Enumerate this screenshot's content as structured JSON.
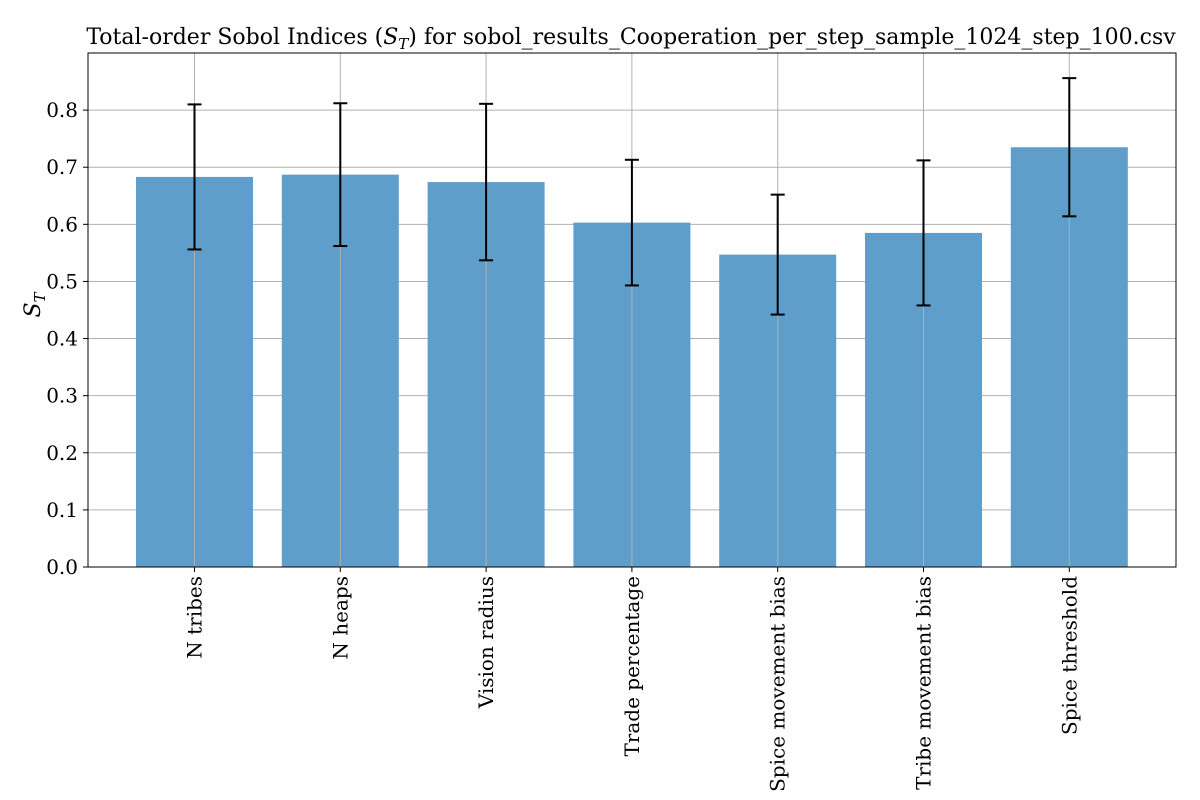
{
  "chart_data": {
    "type": "bar",
    "title": "Total-order Sobol Indices (",
    "title_math": "S",
    "title_sub": "T",
    "title_suffix": ") for sobol_results_Cooperation_per_step_sample_1024_step_100.csv",
    "ylabel_main": "S",
    "ylabel_sub": "T",
    "xlabel": "",
    "ylim": [
      0.0,
      0.9
    ],
    "yticks": [
      "0.0",
      "0.1",
      "0.2",
      "0.3",
      "0.4",
      "0.5",
      "0.6",
      "0.7",
      "0.8"
    ],
    "ytick_values": [
      0.0,
      0.1,
      0.2,
      0.3,
      0.4,
      0.5,
      0.6,
      0.7,
      0.8
    ],
    "grid": true,
    "categories": [
      "N tribes",
      "N heaps",
      "Vision radius",
      "Trade percentage",
      "Spice movement bias",
      "Tribe movement bias",
      "Spice threshold"
    ],
    "values": [
      0.683,
      0.687,
      0.674,
      0.603,
      0.547,
      0.585,
      0.735
    ],
    "errors": [
      0.127,
      0.125,
      0.137,
      0.11,
      0.105,
      0.127,
      0.121
    ],
    "colors": {
      "bar": "#5f9ecb",
      "grid": "#b0b0b0",
      "error": "#000000",
      "axis": "#000000"
    }
  }
}
